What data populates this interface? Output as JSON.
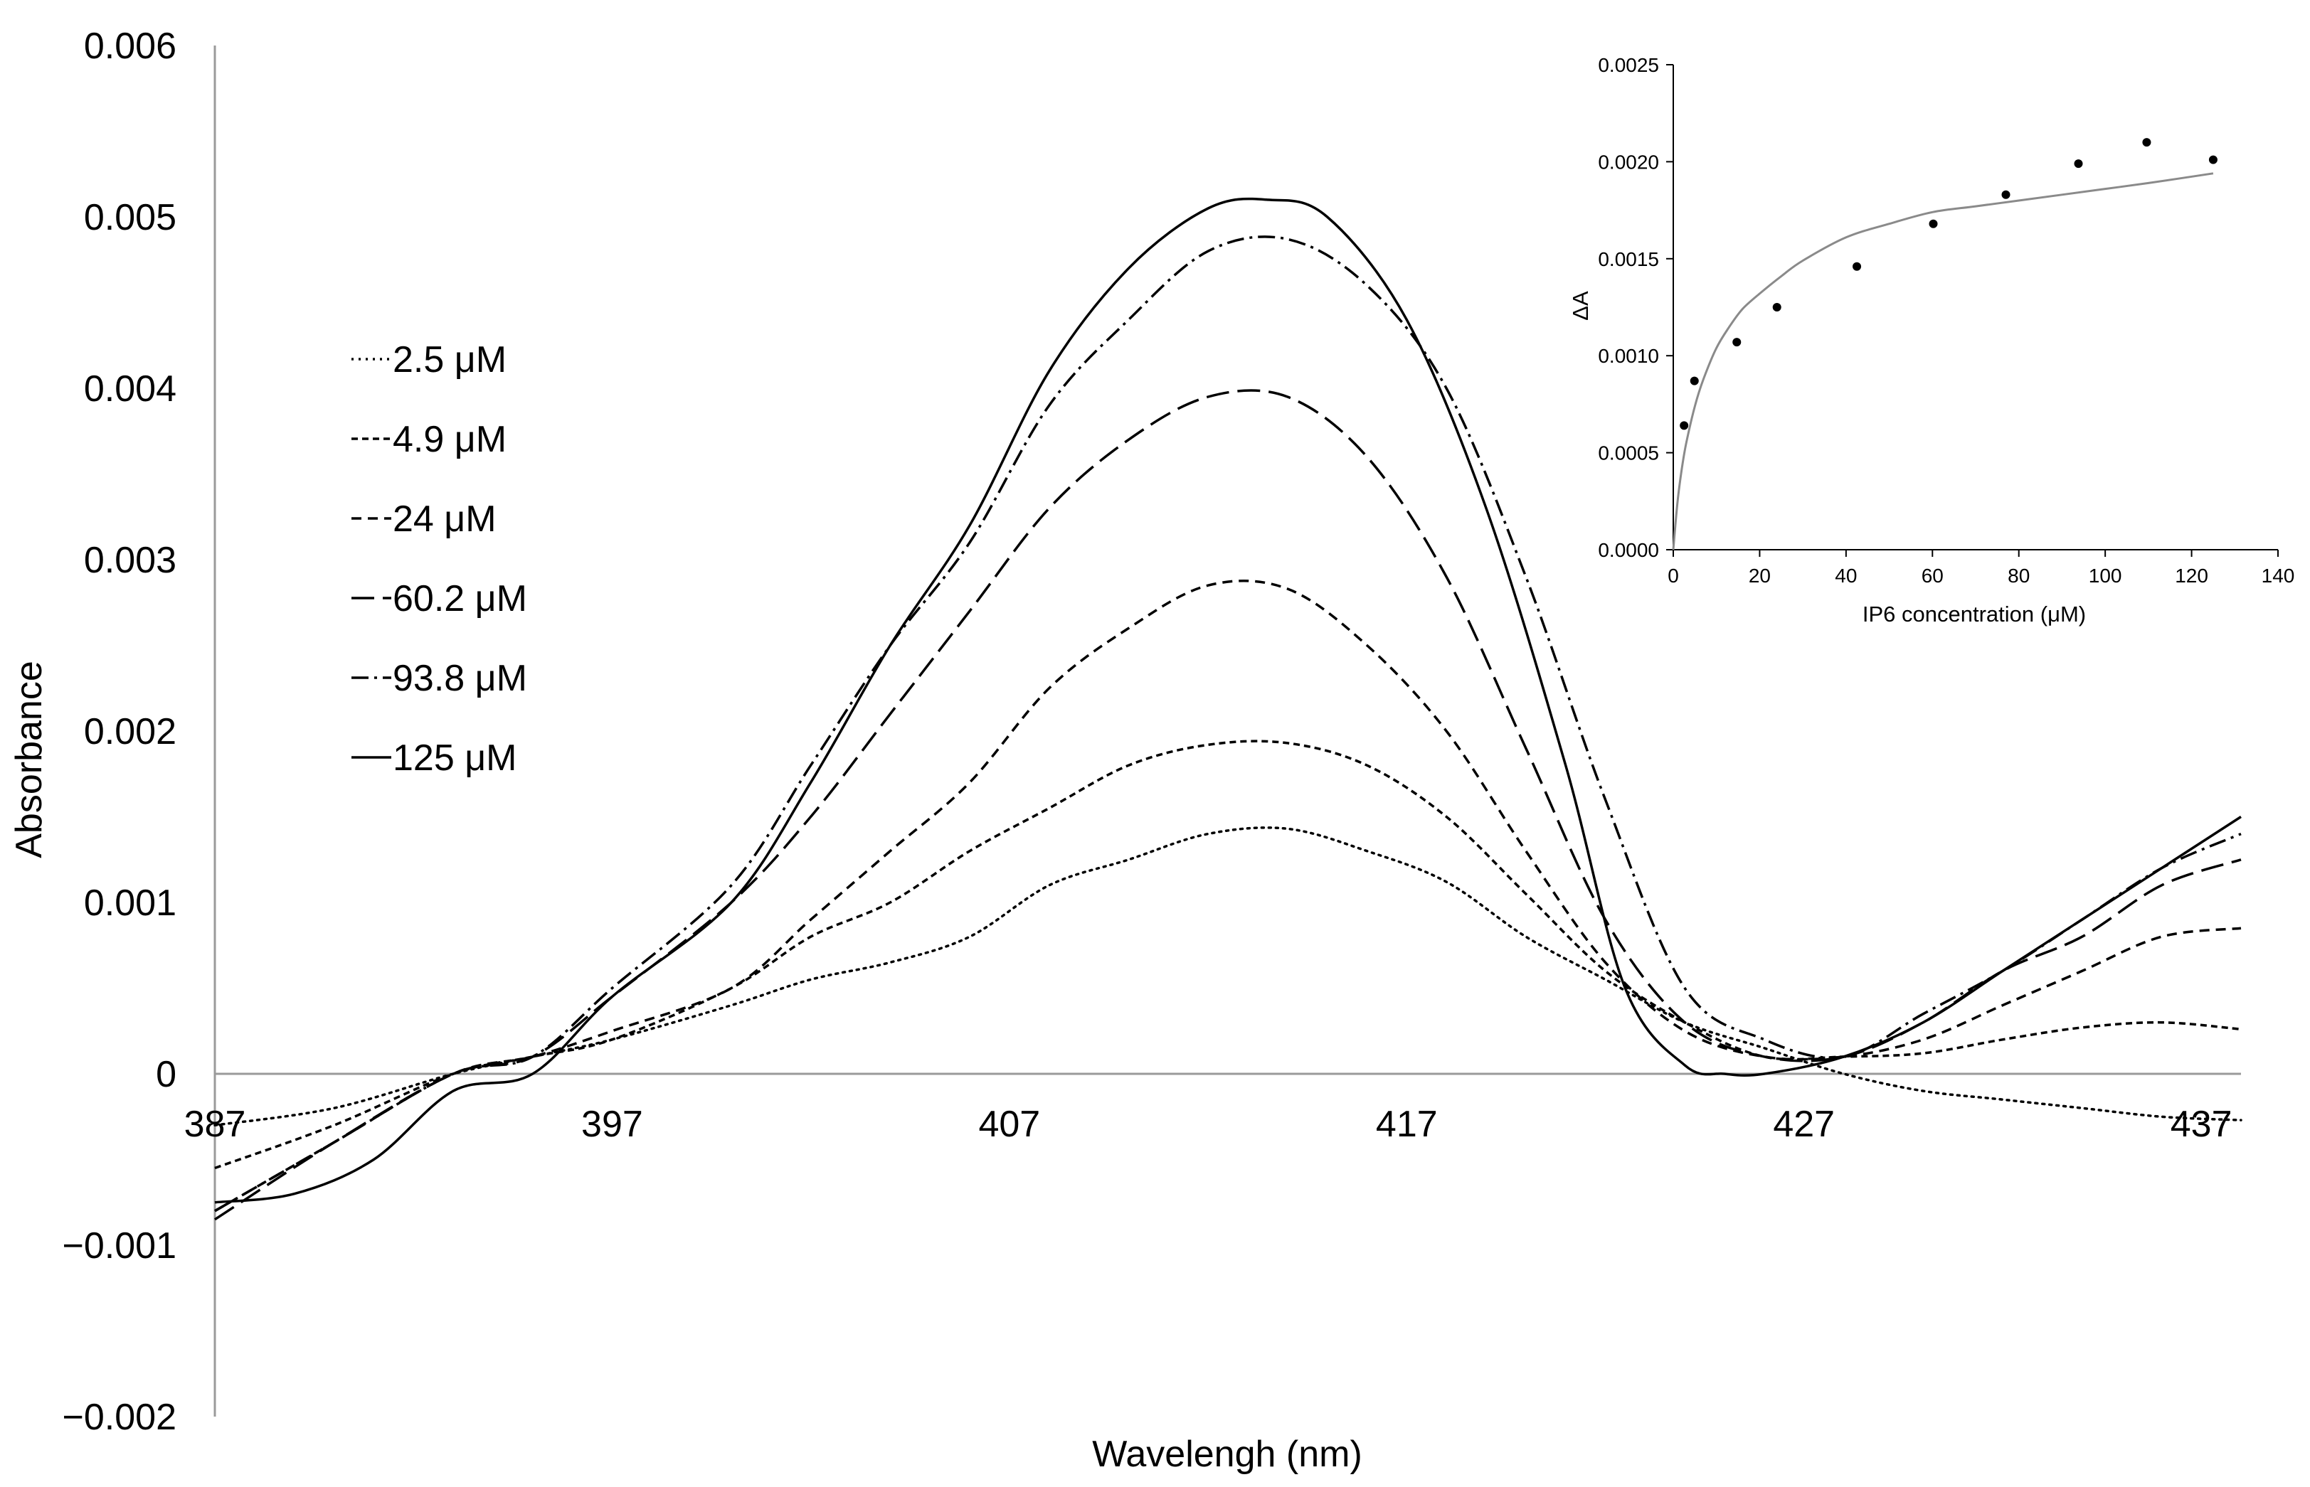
{
  "chart_data": [
    {
      "type": "line",
      "xlabel": "Wavelengh (nm)",
      "ylabel": "Absorbance",
      "xlim": [
        387,
        438
      ],
      "ylim": [
        -0.002,
        0.006
      ],
      "x_ticks": [
        387,
        397,
        407,
        417,
        427,
        437
      ],
      "x_tick_labels": [
        "387",
        "397",
        "407",
        "417",
        "427",
        "437"
      ],
      "y_ticks": [
        0.006,
        0.005,
        0.004,
        0.003,
        0.002,
        0.001,
        0,
        -0.001,
        -0.002
      ],
      "y_tick_labels": [
        "0.006",
        "0.005",
        "0.004",
        "0.003",
        "0.002",
        "0.001",
        "0",
        "−0.001",
        "−0.002"
      ],
      "grid": false,
      "legend_position": "upper-left",
      "series": [
        {
          "name": "2.5 μM",
          "label": "2.5 μM",
          "dash": "dotted",
          "x": [
            387,
            390,
            393,
            395,
            397,
            400,
            402,
            404,
            406,
            408,
            410,
            412,
            414,
            416,
            418,
            420,
            422,
            424,
            426,
            428,
            430,
            432,
            434,
            436,
            438
          ],
          "y": [
            -0.0003,
            -0.0002,
            0.0,
            0.0001,
            0.0002,
            0.0004,
            0.00055,
            0.00065,
            0.0008,
            0.0011,
            0.00125,
            0.0014,
            0.00143,
            0.0013,
            0.00112,
            0.0008,
            0.00055,
            0.0003,
            0.00015,
            0.0,
            -0.0001,
            -0.00015,
            -0.0002,
            -0.00025,
            -0.00027
          ]
        },
        {
          "name": "4.9 μM",
          "label": "4.9 μM",
          "dash": "dash-fine",
          "x": [
            387,
            390,
            393,
            395,
            397,
            400,
            402,
            404,
            406,
            408,
            410,
            412,
            414,
            416,
            418,
            420,
            422,
            424,
            426,
            428,
            430,
            432,
            434,
            436,
            438
          ],
          "y": [
            -0.00055,
            -0.0003,
            0.0,
            0.0001,
            0.0002,
            0.0005,
            0.0008,
            0.001,
            0.0013,
            0.00155,
            0.0018,
            0.00192,
            0.00193,
            0.0018,
            0.0015,
            0.00105,
            0.0006,
            0.0003,
            0.0001,
            0.0001,
            0.00012,
            0.0002,
            0.00027,
            0.0003,
            0.00026
          ]
        },
        {
          "name": "24 μM",
          "label": "24 μM",
          "dash": "dashed",
          "x": [
            387,
            390,
            393,
            395,
            397,
            400,
            402,
            404,
            406,
            408,
            410,
            412,
            414,
            416,
            418,
            420,
            422,
            424,
            426,
            428,
            430,
            432,
            434,
            436,
            438
          ],
          "y": [
            -0.0008,
            -0.0004,
            0.0,
            0.0001,
            0.00025,
            0.0005,
            0.0009,
            0.0013,
            0.0017,
            0.00225,
            0.0026,
            0.00285,
            0.00283,
            0.0025,
            0.002,
            0.0013,
            0.00065,
            0.00025,
            0.0001,
            0.0001,
            0.0002,
            0.0004,
            0.0006,
            0.0008,
            0.00085
          ]
        },
        {
          "name": "60.2 μM",
          "label": "60.2 μM",
          "dash": "long-dash",
          "x": [
            387,
            390,
            393,
            395,
            397,
            400,
            402,
            404,
            406,
            408,
            410,
            412,
            414,
            416,
            418,
            420,
            422,
            424,
            426,
            428,
            430,
            432,
            434,
            436,
            438
          ],
          "y": [
            -0.00085,
            -0.0004,
            0.0,
            0.0001,
            0.00045,
            0.001,
            0.0015,
            0.0021,
            0.0027,
            0.0033,
            0.0037,
            0.00395,
            0.00395,
            0.0036,
            0.0029,
            0.0019,
            0.0009,
            0.0003,
            0.0001,
            0.0001,
            0.0003,
            0.0006,
            0.0008,
            0.0011,
            0.00125
          ]
        },
        {
          "name": "93.8 μM",
          "label": "93.8 μM",
          "dash": "dash-dot",
          "x": [
            387,
            390,
            393,
            395,
            397,
            400,
            402,
            404,
            406,
            408,
            410,
            412,
            414,
            416,
            418,
            420,
            422,
            424,
            426,
            428,
            430,
            432,
            434,
            436,
            438
          ],
          "y": [
            -0.0008,
            -0.0004,
            0.0,
            0.0001,
            0.0005,
            0.0011,
            0.0018,
            0.0025,
            0.0031,
            0.0039,
            0.0044,
            0.0048,
            0.00487,
            0.0046,
            0.004,
            0.0029,
            0.0016,
            0.0005,
            0.0002,
            0.0001,
            0.00035,
            0.0006,
            0.0009,
            0.0012,
            0.0014
          ]
        },
        {
          "name": "125 μM",
          "label": "125 μM",
          "dash": "solid",
          "x": [
            387,
            389,
            391,
            393,
            395,
            397,
            400,
            402,
            404,
            406,
            408,
            410,
            412,
            413.5,
            415,
            417,
            419,
            421,
            422.5,
            424,
            425,
            426,
            428,
            430,
            432,
            434,
            436,
            438
          ],
          "y": [
            -0.00075,
            -0.0007,
            -0.0005,
            -0.0001,
            0.0,
            0.00045,
            0.001,
            0.0017,
            0.0025,
            0.0032,
            0.0041,
            0.0047,
            0.00505,
            0.0051,
            0.005,
            0.0044,
            0.0033,
            0.0018,
            0.0005,
            5e-05,
            0.0,
            0.0,
            0.0001,
            0.0003,
            0.0006,
            0.0009,
            0.0012,
            0.0015
          ]
        }
      ]
    },
    {
      "type": "scatter",
      "xlabel": "IP6 concentration (μM)",
      "ylabel": "ΔA",
      "xlim": [
        0,
        140
      ],
      "ylim": [
        0,
        0.0025
      ],
      "x_ticks": [
        0,
        20,
        40,
        60,
        80,
        100,
        120,
        140
      ],
      "x_tick_labels": [
        "0",
        "20",
        "40",
        "60",
        "80",
        "100",
        "120",
        "140"
      ],
      "y_ticks": [
        0,
        0.0005,
        0.001,
        0.0015,
        0.002,
        0.0025
      ],
      "y_tick_labels": [
        "0.0000",
        "0.0005",
        "0.0010",
        "0.0015",
        "0.0020",
        "0.0025"
      ],
      "grid": false,
      "points": {
        "x": [
          2.5,
          4.9,
          14.7,
          24,
          42.5,
          60.2,
          77,
          93.8,
          109.6,
          125
        ],
        "y": [
          0.00064,
          0.00087,
          0.00107,
          0.00125,
          0.00146,
          0.00168,
          0.00183,
          0.00199,
          0.0021,
          0.00201
        ]
      },
      "fit": {
        "model": "saturation binding (hyperbolic)",
        "x": [
          0,
          1,
          2,
          3,
          5,
          7,
          10,
          13,
          16,
          20,
          25,
          30,
          40,
          50,
          60,
          70,
          80,
          90,
          100,
          110,
          125
        ],
        "y": [
          0,
          0.00025,
          0.00042,
          0.00055,
          0.00074,
          0.00088,
          0.00104,
          0.00115,
          0.00124,
          0.00132,
          0.00141,
          0.00149,
          0.00161,
          0.00168,
          0.00174,
          0.00177,
          0.0018,
          0.00183,
          0.00186,
          0.00189,
          0.00194
        ]
      },
      "position": "top-right inset"
    }
  ]
}
